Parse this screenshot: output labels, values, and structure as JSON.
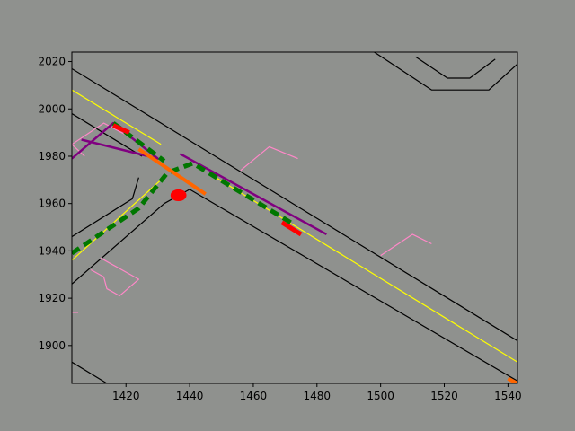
{
  "chart_data": {
    "type": "line",
    "title": "",
    "xlabel": "",
    "ylabel": "",
    "xlim": [
      1403,
      1543
    ],
    "ylim": [
      1884,
      2024
    ],
    "grid": false,
    "x_ticks": [
      1420,
      1440,
      1460,
      1480,
      1500,
      1520,
      1540
    ],
    "y_ticks": [
      1900,
      1920,
      1940,
      1960,
      1980,
      2000,
      2020
    ],
    "colors": {
      "figure_bg": "#8f918e",
      "axes_bg": "#8f918e",
      "road_edge": "#000000",
      "lane_center": "#ffff00",
      "crosswalk": "#ff88c8",
      "trajectory_purple": "#800080",
      "trajectory_green": "#007700",
      "trajectory_orange": "#ff6600",
      "marker_red": "#ff0000"
    },
    "series": [
      {
        "role": "road-edge",
        "points": [
          [
            1403,
            2017
          ],
          [
            1543,
            1902
          ]
        ]
      },
      {
        "role": "road-edge",
        "points": [
          [
            1403,
            1998
          ],
          [
            1425,
            1980
          ]
        ]
      },
      {
        "role": "road-edge",
        "points": [
          [
            1403,
            1946
          ],
          [
            1422,
            1962
          ],
          [
            1424,
            1971
          ]
        ]
      },
      {
        "role": "road-edge",
        "points": [
          [
            1403,
            1926
          ],
          [
            1432,
            1960
          ],
          [
            1440,
            1966
          ],
          [
            1543,
            1885
          ]
        ]
      },
      {
        "role": "road-edge",
        "points": [
          [
            1403,
            1893
          ],
          [
            1414,
            1884
          ]
        ]
      },
      {
        "role": "road-edge",
        "points": [
          [
            1498,
            2024
          ],
          [
            1516,
            2008
          ],
          [
            1534,
            2008
          ],
          [
            1543,
            2019
          ]
        ]
      },
      {
        "role": "road-edge",
        "points": [
          [
            1511,
            2022
          ],
          [
            1521,
            2013
          ],
          [
            1528,
            2013
          ],
          [
            1536,
            2021
          ]
        ]
      },
      {
        "role": "lane-center",
        "points": [
          [
            1403,
            2008
          ],
          [
            1431,
            1985
          ]
        ]
      },
      {
        "role": "lane-center",
        "points": [
          [
            1403,
            1936
          ],
          [
            1431,
            1970
          ]
        ]
      },
      {
        "role": "lane-center",
        "points": [
          [
            1447,
            1972
          ],
          [
            1543,
            1893
          ]
        ]
      },
      {
        "role": "crosswalk",
        "points": [
          [
            1403,
            1985
          ],
          [
            1413,
            1994
          ],
          [
            1420,
            1989
          ]
        ]
      },
      {
        "role": "crosswalk",
        "points": [
          [
            1403,
            1985
          ],
          [
            1407,
            1980
          ]
        ]
      },
      {
        "role": "crosswalk",
        "points": [
          [
            1409,
            1932
          ],
          [
            1413,
            1929
          ],
          [
            1414,
            1924
          ],
          [
            1418,
            1921
          ],
          [
            1424,
            1928
          ],
          [
            1412,
            1937
          ]
        ]
      },
      {
        "role": "crosswalk",
        "points": [
          [
            1456,
            1974
          ],
          [
            1465,
            1984
          ],
          [
            1474,
            1979
          ]
        ]
      },
      {
        "role": "crosswalk",
        "points": [
          [
            1500,
            1938
          ],
          [
            1510,
            1947
          ],
          [
            1516,
            1943
          ]
        ]
      },
      {
        "role": "crosswalk",
        "points": [
          [
            1403,
            1914
          ],
          [
            1405,
            1914
          ]
        ]
      },
      {
        "role": "trajectory-purple",
        "points": [
          [
            1403,
            1979
          ],
          [
            1416,
            1994
          ],
          [
            1430,
            1979
          ],
          [
            1406,
            1987
          ]
        ]
      },
      {
        "role": "trajectory-purple",
        "points": [
          [
            1437,
            1981
          ],
          [
            1483,
            1947
          ]
        ]
      },
      {
        "role": "trajectory-green",
        "dashed": true,
        "points": [
          [
            1403,
            1939
          ],
          [
            1424,
            1958
          ],
          [
            1433,
            1973
          ],
          [
            1441,
            1977
          ],
          [
            1473,
            1951
          ]
        ]
      },
      {
        "role": "trajectory-green",
        "dashed": true,
        "points": [
          [
            1416,
            1994
          ],
          [
            1432,
            1978
          ]
        ]
      },
      {
        "role": "trajectory-orange",
        "points": [
          [
            1424,
            1983
          ],
          [
            1445,
            1964
          ]
        ]
      },
      {
        "role": "trajectory-orange",
        "points": [
          [
            1540,
            1886
          ],
          [
            1543,
            1884
          ]
        ]
      },
      {
        "role": "trajectory-red",
        "points": [
          [
            1416,
            1993
          ],
          [
            1421,
            1990
          ]
        ]
      },
      {
        "role": "trajectory-red",
        "points": [
          [
            1469,
            1952
          ],
          [
            1475,
            1947
          ]
        ]
      }
    ],
    "markers": [
      {
        "role": "marker-red",
        "x": 1436.5,
        "y": 1963.5,
        "rx": 2.5,
        "ry": 2.5
      }
    ]
  }
}
